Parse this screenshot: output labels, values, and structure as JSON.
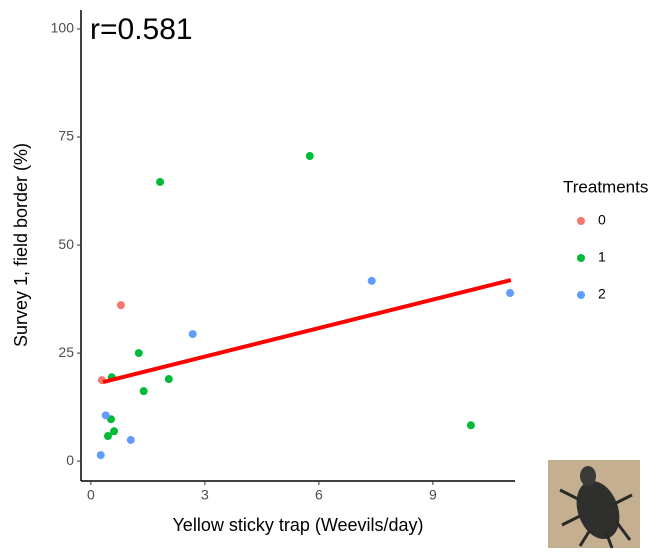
{
  "chart_data": {
    "type": "scatter",
    "annotation": "r=0.581",
    "x_label": "Yellow sticky trap (Weevils/day)",
    "y_label": "Survey 1, field border (%)",
    "legend_title": "Treatments",
    "legend_position": "right",
    "grid": false,
    "xlim": [
      -0.26,
      11.16
    ],
    "ylim": [
      -4.6,
      104.4
    ],
    "xticks": [
      0,
      3,
      6,
      9
    ],
    "yticks": [
      0,
      25,
      50,
      75,
      100
    ],
    "series": [
      {
        "name": "0",
        "color": "#F8766D",
        "x": [
          0.29,
          0.79
        ],
        "values": [
          18.75,
          36.1
        ]
      },
      {
        "name": "1",
        "color": "#00BA38",
        "x": [
          5.76,
          1.82,
          1.26,
          2.05,
          1.39,
          0.55,
          0.53,
          0.45,
          0.61,
          10.0
        ],
        "values": [
          70.6,
          64.6,
          25,
          19,
          16.2,
          19.4,
          9.7,
          5.8,
          6.9,
          8.3
        ]
      },
      {
        "name": "2",
        "color": "#619CFF",
        "x": [
          7.39,
          11.03,
          2.68,
          0.39,
          1.05,
          0.26
        ],
        "values": [
          41.7,
          38.9,
          29.4,
          10.6,
          4.9,
          1.4
        ]
      }
    ],
    "trend": {
      "color": "#FF0000",
      "x": [
        0.32,
        11.05
      ],
      "values": [
        18.3,
        41.9
      ]
    }
  }
}
